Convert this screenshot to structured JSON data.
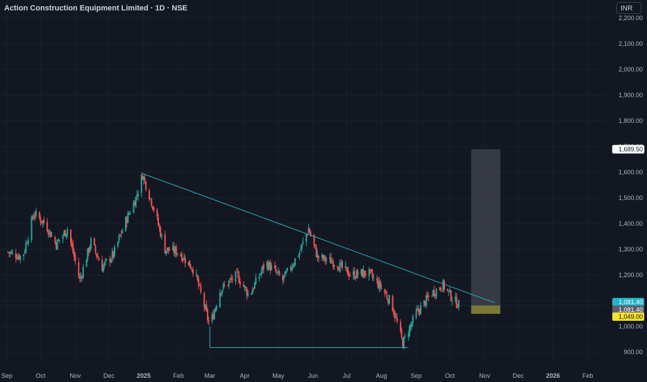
{
  "header": {
    "title": "Action Construction Equipment Limited · 1D · NSE",
    "currency": "INR"
  },
  "colors": {
    "background": "#131722",
    "grid": "#1c202b",
    "up": "#26a69a",
    "down": "#ef5350",
    "trendline": "#2bb3bf",
    "projection_box": "rgba(120,123,134,0.35)",
    "yellow_zone": "rgba(180,170,40,0.55)"
  },
  "chart_data": {
    "type": "candlestick",
    "title": "Action Construction Equipment Limited · 1D · NSE",
    "x_ticks": [
      "Sep",
      "Oct",
      "Nov",
      "Dec",
      "2025",
      "Feb",
      "Mar",
      "Apr",
      "May",
      "Jun",
      "Jul",
      "Aug",
      "Sep",
      "Oct",
      "Nov",
      "Dec",
      "2026",
      "Feb"
    ],
    "y_ticks": [
      "2,200.00",
      "2,100.00",
      "2,000.00",
      "1,900.00",
      "1,800.00",
      "1,700.00",
      "1,600.00",
      "1,500.00",
      "1,400.00",
      "1,300.00",
      "1,200.00",
      "1,100.00",
      "1,000.00",
      "900.00"
    ],
    "y_values": [
      2200,
      2100,
      2000,
      1900,
      1800,
      1700,
      1600,
      1500,
      1400,
      1300,
      1200,
      1100,
      1000,
      900
    ],
    "ylim": [
      880,
      2240
    ],
    "closing_price_path": [
      [
        "2024-09-01",
        1290
      ],
      [
        "2024-09-15",
        1270
      ],
      [
        "2024-09-25",
        1440
      ],
      [
        "2024-10-05",
        1400
      ],
      [
        "2024-10-15",
        1320
      ],
      [
        "2024-10-25",
        1380
      ],
      [
        "2024-11-05",
        1180
      ],
      [
        "2024-11-15",
        1330
      ],
      [
        "2024-11-25",
        1230
      ],
      [
        "2024-12-05",
        1280
      ],
      [
        "2024-12-15",
        1400
      ],
      [
        "2024-12-25",
        1500
      ],
      [
        "2024-12-31",
        1590
      ],
      [
        "2025-01-10",
        1460
      ],
      [
        "2025-01-20",
        1300
      ],
      [
        "2025-02-01",
        1290
      ],
      [
        "2025-02-15",
        1220
      ],
      [
        "2025-03-01",
        1000
      ],
      [
        "2025-03-10",
        1140
      ],
      [
        "2025-03-25",
        1200
      ],
      [
        "2025-04-05",
        1120
      ],
      [
        "2025-04-20",
        1250
      ],
      [
        "2025-05-05",
        1180
      ],
      [
        "2025-05-20",
        1290
      ],
      [
        "2025-05-28",
        1380
      ],
      [
        "2025-06-05",
        1270
      ],
      [
        "2025-06-20",
        1250
      ],
      [
        "2025-07-05",
        1200
      ],
      [
        "2025-07-20",
        1210
      ],
      [
        "2025-08-01",
        1150
      ],
      [
        "2025-08-10",
        1090
      ],
      [
        "2025-08-20",
        935
      ],
      [
        "2025-09-01",
        1050
      ],
      [
        "2025-09-15",
        1130
      ],
      [
        "2025-09-25",
        1160
      ],
      [
        "2025-10-05",
        1100
      ],
      [
        "2025-10-10",
        1081.4
      ]
    ],
    "trendlines": [
      {
        "from": [
          "2024-12-31",
          1595
        ],
        "to": [
          "2025-11-10",
          1092
        ]
      },
      {
        "from": [
          "2025-03-01",
          918
        ],
        "to": [
          "2025-08-25",
          918
        ]
      },
      {
        "from": [
          "2025-03-01",
          918
        ],
        "to": [
          "2025-03-01",
          1000
        ]
      }
    ],
    "projection_box": {
      "x_from": "2025-10-20",
      "x_to": "2025-11-15",
      "y_from": 1049,
      "y_to": 1689.5
    },
    "yellow_zone": {
      "x_from": "2025-10-20",
      "x_to": "2025-11-15",
      "y_from": 1049,
      "y_to": 1081.4
    },
    "price_labels": [
      {
        "text": "1,689.50",
        "value": 1689.5,
        "style": "white"
      },
      {
        "text": "1,081.40",
        "value": 1081.4,
        "style": "cyan"
      },
      {
        "text": "1,081.40",
        "value": 1081.4,
        "style": "gray"
      },
      {
        "text": "1,049.00",
        "value": 1049.0,
        "style": "yellow"
      }
    ],
    "current_price": 1081.4
  }
}
